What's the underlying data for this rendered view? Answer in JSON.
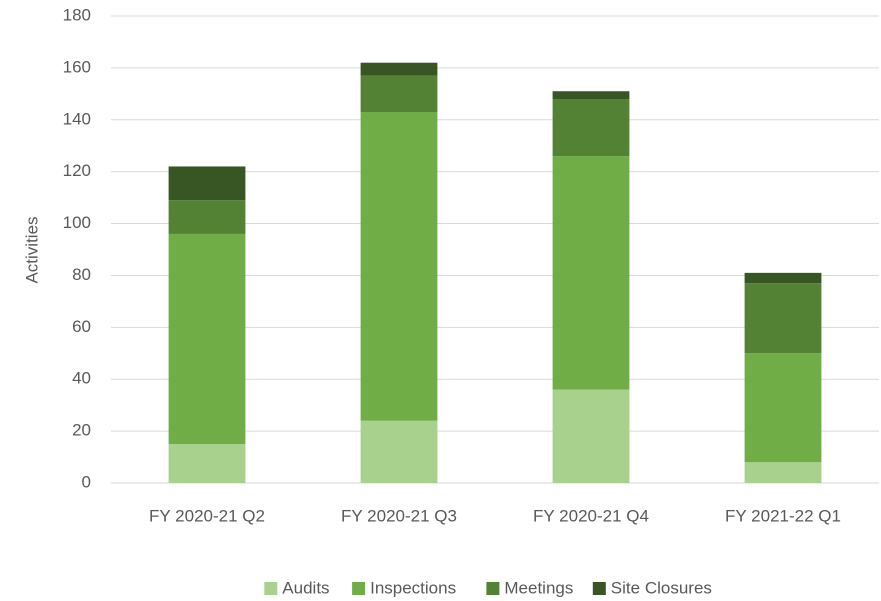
{
  "chart_data": {
    "type": "stacked_bar",
    "y_label": "Activities",
    "categories": [
      "FY 2020-21 Q2",
      "FY 2020-21 Q3",
      "FY 2020-21 Q4",
      "FY 2021-22 Q1"
    ],
    "series": [
      {
        "name": "Audits",
        "color": "#a9d18e",
        "values": [
          15,
          24,
          36,
          8
        ]
      },
      {
        "name": "Inspections",
        "color": "#70ad47",
        "values": [
          81,
          119,
          90,
          42
        ]
      },
      {
        "name": "Meetings",
        "color": "#548235",
        "values": [
          13,
          14,
          22,
          27
        ]
      },
      {
        "name": "Site Closures",
        "color": "#375623",
        "values": [
          13,
          5,
          3,
          4
        ]
      }
    ],
    "ylim": [
      0,
      180
    ],
    "yticks": [
      0,
      20,
      40,
      60,
      80,
      100,
      120,
      140,
      160,
      180
    ],
    "grid": true,
    "legend": "bottom"
  }
}
